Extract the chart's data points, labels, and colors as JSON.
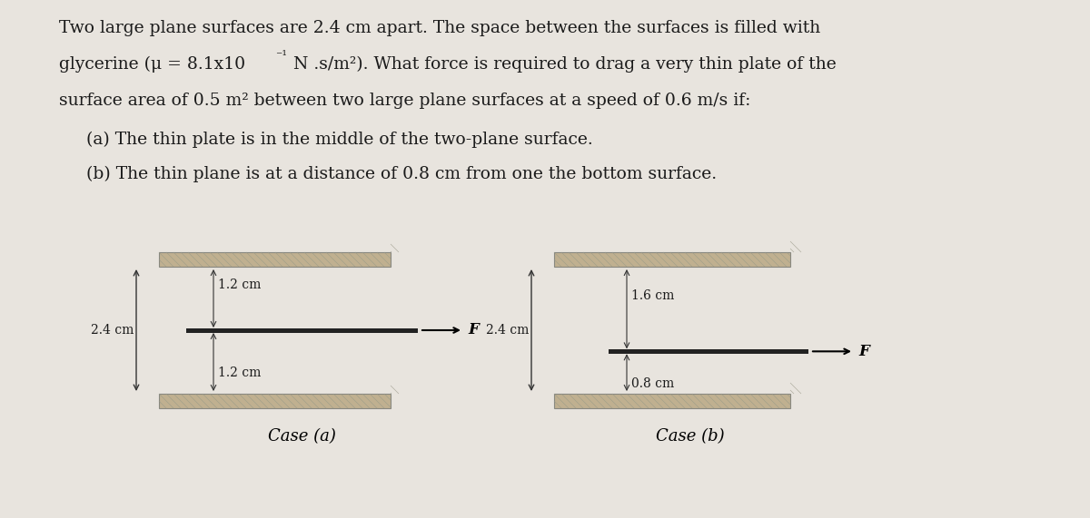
{
  "bg_color": "#e8e4de",
  "text_color": "#1a1a1a",
  "line1": "Two large plane surfaces are 2.4 cm apart. The space between the surfaces is filled with",
  "line2a": "glycerine (",
  "line2b": "μ = 8.1x10",
  "line2c": "-1",
  "line2d": "N .s/m²). What force is required to drag a very thin plate of the",
  "line3": "surface area of 0.5 m² between two large plane surfaces at a speed of 0.6 m/s if:",
  "item_a": "(a) The thin plate is in the middle of the two-plane surface.",
  "item_b": "(b) The thin plane is at a distance of 0.8 cm from one the bottom surface.",
  "case_a_label": "Case (a)",
  "case_b_label": "Case (b)",
  "label_24cm_a": "2.4 cm",
  "label_12cm_top": "1.2 cm",
  "label_12cm_bot": "1.2 cm",
  "label_24cm_b": "2.4 cm",
  "label_16cm": "1.6 cm",
  "label_08cm": "0.8 cm",
  "label_F": "F",
  "surface_color": "#c0b090",
  "surface_edge": "#888880",
  "plate_color": "#222222",
  "arrow_color": "#333333",
  "dim_color": "#333333"
}
